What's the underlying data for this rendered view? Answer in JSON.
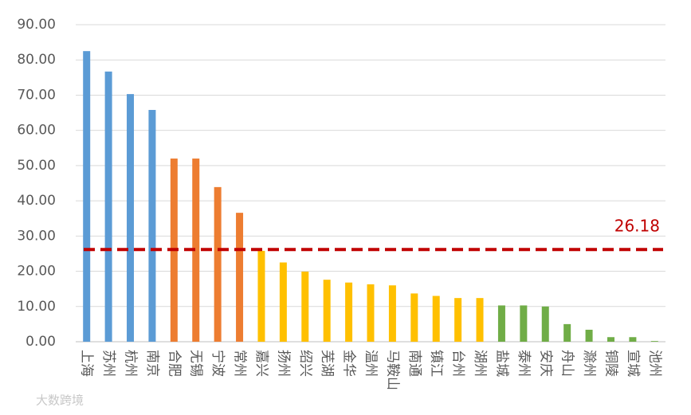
{
  "chart_data": {
    "type": "bar",
    "categories": [
      "上海",
      "苏州",
      "杭州",
      "南京",
      "合肥",
      "无锡",
      "宁波",
      "常州",
      "嘉兴",
      "扬州",
      "绍兴",
      "芜湖",
      "金华",
      "温州",
      "马鞍山",
      "南通",
      "镇江",
      "台州",
      "湖州",
      "盐城",
      "泰州",
      "安庆",
      "舟山",
      "滁州",
      "铜陵",
      "宣城",
      "池州"
    ],
    "values": [
      82.5,
      76.7,
      70.3,
      65.8,
      52.0,
      52.0,
      43.9,
      36.6,
      25.8,
      22.5,
      19.9,
      17.6,
      16.8,
      16.3,
      16.0,
      13.7,
      13.0,
      12.4,
      12.4,
      10.3,
      10.3,
      10.0,
      5.0,
      3.4,
      1.3,
      1.3,
      0.2
    ],
    "colors": [
      "#5b9bd5",
      "#5b9bd5",
      "#5b9bd5",
      "#5b9bd5",
      "#ed7d31",
      "#ed7d31",
      "#ed7d31",
      "#ed7d31",
      "#ffc000",
      "#ffc000",
      "#ffc000",
      "#ffc000",
      "#ffc000",
      "#ffc000",
      "#ffc000",
      "#ffc000",
      "#ffc000",
      "#ffc000",
      "#ffc000",
      "#70ad47",
      "#70ad47",
      "#70ad47",
      "#70ad47",
      "#70ad47",
      "#70ad47",
      "#70ad47",
      "#70ad47"
    ],
    "ylim": [
      0,
      90
    ],
    "yticks": [
      {
        "value": 0,
        "label": "0.00"
      },
      {
        "value": 10,
        "label": "10.00"
      },
      {
        "value": 20,
        "label": "20.00"
      },
      {
        "value": 30,
        "label": "30.00"
      },
      {
        "value": 40,
        "label": "40.00"
      },
      {
        "value": 50,
        "label": "50.00"
      },
      {
        "value": 60,
        "label": "60.00"
      },
      {
        "value": 70,
        "label": "70.00"
      },
      {
        "value": 80,
        "label": "80.00"
      },
      {
        "value": 90,
        "label": "90.00"
      }
    ],
    "grid": true,
    "reference_line": {
      "value": 26.18,
      "label": "26.18",
      "color": "#c00000"
    }
  },
  "watermark": "大数跨境"
}
